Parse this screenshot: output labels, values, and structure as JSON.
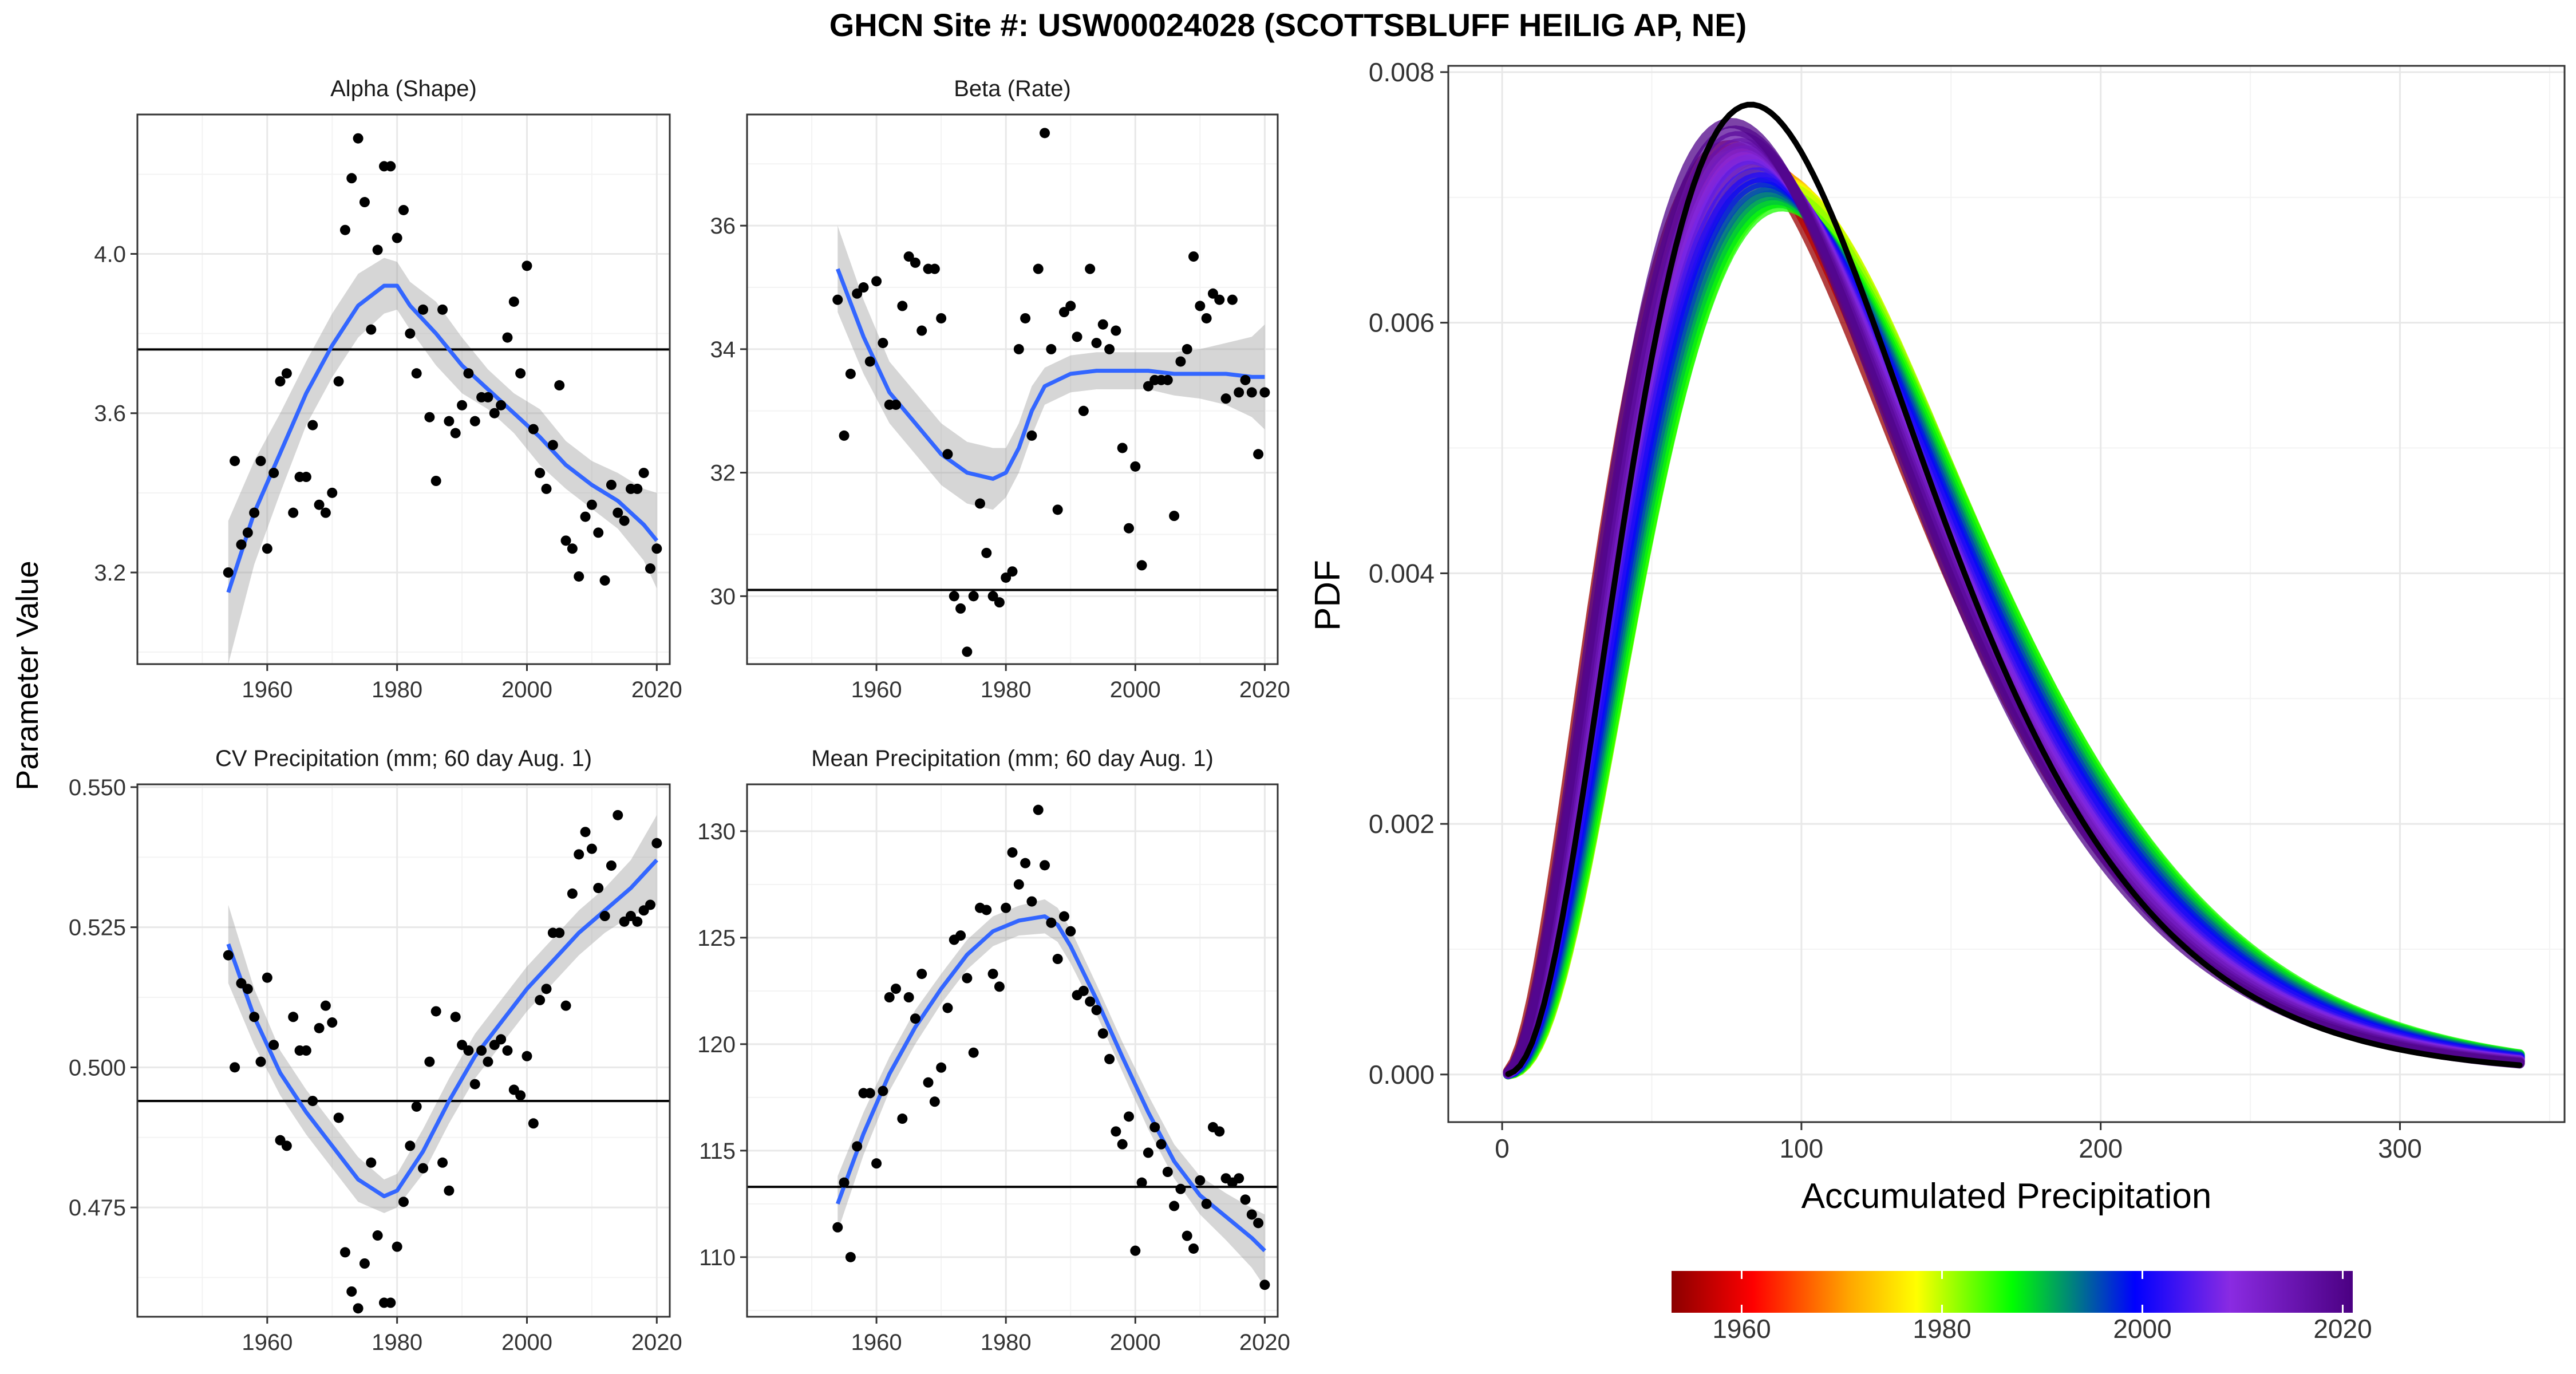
{
  "title": "GHCN Site #: USW00024028 (SCOTTSBLUFF HEILIG AP, NE)",
  "left_ylabel": "Parameter Value",
  "chart_data": [
    {
      "type": "scatter",
      "title": "Alpha (Shape)",
      "xlim": [
        1940,
        2022
      ],
      "ylim": [
        2.97,
        4.35
      ],
      "xticks": [
        1960,
        1980,
        2000,
        2020
      ],
      "yticks": [
        3.2,
        3.6,
        4.0
      ],
      "ytick_labels": [
        "3.2",
        "3.6",
        "4.0"
      ],
      "hline": 3.76,
      "points": {
        "x": [
          1954,
          1955,
          1956,
          1957,
          1958,
          1959,
          1960,
          1961,
          1962,
          1963,
          1964,
          1965,
          1966,
          1967,
          1968,
          1969,
          1970,
          1971,
          1972,
          1973,
          1974,
          1975,
          1976,
          1977,
          1978,
          1979,
          1980,
          1981,
          1982,
          1983,
          1984,
          1985,
          1986,
          1987,
          1988,
          1989,
          1990,
          1991,
          1992,
          1993,
          1994,
          1995,
          1996,
          1997,
          1998,
          1999,
          2000,
          2001,
          2002,
          2003,
          2004,
          2005,
          2006,
          2007,
          2008,
          2009,
          2010,
          2011,
          2012,
          2013,
          2014,
          2015,
          2016,
          2017,
          2018,
          2019,
          2020
        ],
        "y": [
          3.2,
          3.48,
          3.27,
          3.3,
          3.35,
          3.48,
          3.26,
          3.45,
          3.68,
          3.7,
          3.35,
          3.44,
          3.44,
          3.57,
          3.37,
          3.35,
          3.4,
          3.68,
          4.06,
          4.19,
          4.29,
          4.13,
          3.81,
          4.01,
          4.22,
          4.22,
          4.04,
          4.11,
          3.8,
          3.7,
          3.86,
          3.59,
          3.43,
          3.86,
          3.58,
          3.55,
          3.62,
          3.7,
          3.58,
          3.64,
          3.64,
          3.6,
          3.62,
          3.79,
          3.88,
          3.7,
          3.97,
          3.56,
          3.45,
          3.41,
          3.52,
          3.67,
          3.28,
          3.26,
          3.19,
          3.34,
          3.37,
          3.3,
          3.18,
          3.42,
          3.35,
          3.33,
          3.41,
          3.41,
          3.45,
          3.21,
          3.26
        ]
      },
      "smooth": {
        "x": [
          1954,
          1958,
          1962,
          1966,
          1970,
          1974,
          1978,
          1980,
          1982,
          1986,
          1990,
          1994,
          1998,
          2002,
          2006,
          2010,
          2014,
          2018,
          2020
        ],
        "y": [
          3.15,
          3.35,
          3.5,
          3.65,
          3.77,
          3.87,
          3.92,
          3.92,
          3.87,
          3.8,
          3.72,
          3.66,
          3.6,
          3.54,
          3.47,
          3.42,
          3.38,
          3.32,
          3.28
        ],
        "lo": [
          2.97,
          3.22,
          3.4,
          3.57,
          3.69,
          3.79,
          3.85,
          3.86,
          3.81,
          3.72,
          3.65,
          3.61,
          3.55,
          3.47,
          3.41,
          3.36,
          3.31,
          3.23,
          3.16
        ],
        "hi": [
          3.33,
          3.48,
          3.6,
          3.73,
          3.85,
          3.95,
          3.99,
          3.98,
          3.93,
          3.88,
          3.79,
          3.71,
          3.65,
          3.61,
          3.53,
          3.48,
          3.45,
          3.41,
          3.4
        ]
      }
    },
    {
      "type": "scatter",
      "title": "Beta (Rate)",
      "xlim": [
        1940,
        2022
      ],
      "ylim": [
        28.9,
        37.8
      ],
      "xticks": [
        1960,
        1980,
        2000,
        2020
      ],
      "yticks": [
        30,
        32,
        34,
        36
      ],
      "ytick_labels": [
        "30",
        "32",
        "34",
        "36"
      ],
      "hline": 30.1,
      "points": {
        "x": [
          1954,
          1955,
          1956,
          1957,
          1958,
          1959,
          1960,
          1961,
          1962,
          1963,
          1964,
          1965,
          1966,
          1967,
          1968,
          1969,
          1970,
          1971,
          1972,
          1973,
          1974,
          1975,
          1976,
          1977,
          1978,
          1979,
          1980,
          1981,
          1982,
          1983,
          1984,
          1985,
          1986,
          1987,
          1988,
          1989,
          1990,
          1991,
          1992,
          1993,
          1994,
          1995,
          1996,
          1997,
          1998,
          1999,
          2000,
          2001,
          2002,
          2003,
          2004,
          2005,
          2006,
          2007,
          2008,
          2009,
          2010,
          2011,
          2012,
          2013,
          2014,
          2015,
          2016,
          2017,
          2018,
          2019,
          2020
        ],
        "y": [
          34.8,
          32.6,
          33.6,
          34.9,
          35.0,
          33.8,
          35.1,
          34.1,
          33.1,
          33.1,
          34.7,
          35.5,
          35.4,
          34.3,
          35.3,
          35.3,
          34.5,
          32.3,
          30.0,
          29.8,
          29.1,
          30.0,
          31.5,
          30.7,
          30.0,
          29.9,
          30.3,
          30.4,
          34.0,
          34.5,
          32.6,
          35.3,
          37.5,
          34.0,
          31.4,
          34.6,
          34.7,
          34.2,
          33.0,
          35.3,
          34.1,
          34.4,
          34.0,
          34.3,
          32.4,
          31.1,
          32.1,
          30.5,
          33.4,
          33.5,
          33.5,
          33.5,
          31.3,
          33.8,
          34.0,
          35.5,
          34.7,
          34.5,
          34.9,
          34.8,
          33.2,
          34.8,
          33.3,
          33.5,
          33.3,
          32.3,
          33.3
        ]
      },
      "smooth": {
        "x": [
          1954,
          1958,
          1962,
          1966,
          1970,
          1974,
          1978,
          1980,
          1982,
          1984,
          1986,
          1990,
          1994,
          1998,
          2002,
          2006,
          2010,
          2014,
          2018,
          2020
        ],
        "y": [
          35.3,
          34.2,
          33.3,
          32.8,
          32.3,
          32.0,
          31.9,
          32.0,
          32.4,
          33.0,
          33.4,
          33.6,
          33.65,
          33.65,
          33.65,
          33.6,
          33.6,
          33.6,
          33.55,
          33.55
        ],
        "lo": [
          34.6,
          33.6,
          32.8,
          32.3,
          31.8,
          31.5,
          31.4,
          31.6,
          32.0,
          32.6,
          33.1,
          33.3,
          33.35,
          33.35,
          33.35,
          33.25,
          33.2,
          33.1,
          32.9,
          32.7
        ],
        "hi": [
          36.0,
          34.8,
          33.8,
          33.3,
          32.8,
          32.5,
          32.4,
          32.4,
          32.8,
          33.4,
          33.7,
          33.9,
          33.95,
          33.95,
          33.95,
          33.95,
          34.0,
          34.1,
          34.2,
          34.4
        ]
      }
    },
    {
      "type": "scatter",
      "title": "CV Precipitation (mm; 60 day Aug. 1)",
      "xlim": [
        1940,
        2022
      ],
      "ylim": [
        0.4555,
        0.5505
      ],
      "xticks": [
        1960,
        1980,
        2000,
        2020
      ],
      "yticks": [
        0.475,
        0.5,
        0.525,
        0.55
      ],
      "ytick_labels": [
        "0.475",
        "0.500",
        "0.525",
        "0.550"
      ],
      "hline": 0.494,
      "points": {
        "x": [
          1954,
          1955,
          1956,
          1957,
          1958,
          1959,
          1960,
          1961,
          1962,
          1963,
          1964,
          1965,
          1966,
          1967,
          1968,
          1969,
          1970,
          1971,
          1972,
          1973,
          1974,
          1975,
          1976,
          1977,
          1978,
          1979,
          1980,
          1981,
          1982,
          1983,
          1984,
          1985,
          1986,
          1987,
          1988,
          1989,
          1990,
          1991,
          1992,
          1993,
          1994,
          1995,
          1996,
          1997,
          1998,
          1999,
          2000,
          2001,
          2002,
          2003,
          2004,
          2005,
          2006,
          2007,
          2008,
          2009,
          2010,
          2011,
          2012,
          2013,
          2014,
          2015,
          2016,
          2017,
          2018,
          2019,
          2020
        ],
        "y": [
          0.52,
          0.5,
          0.515,
          0.514,
          0.509,
          0.501,
          0.516,
          0.504,
          0.487,
          0.486,
          0.509,
          0.503,
          0.503,
          0.494,
          0.507,
          0.511,
          0.508,
          0.491,
          0.467,
          0.46,
          0.457,
          0.465,
          0.483,
          0.47,
          0.458,
          0.458,
          0.468,
          0.476,
          0.486,
          0.493,
          0.482,
          0.501,
          0.51,
          0.483,
          0.478,
          0.509,
          0.504,
          0.503,
          0.497,
          0.503,
          0.501,
          0.504,
          0.505,
          0.503,
          0.496,
          0.495,
          0.502,
          0.49,
          0.512,
          0.514,
          0.524,
          0.524,
          0.511,
          0.531,
          0.538,
          0.542,
          0.539,
          0.532,
          0.527,
          0.536,
          0.545,
          0.526,
          0.527,
          0.526,
          0.528,
          0.529,
          0.54
        ]
      },
      "smooth": {
        "x": [
          1954,
          1958,
          1962,
          1966,
          1970,
          1974,
          1978,
          1980,
          1984,
          1988,
          1992,
          1996,
          2000,
          2004,
          2008,
          2012,
          2016,
          2020
        ],
        "y": [
          0.522,
          0.509,
          0.499,
          0.492,
          0.486,
          0.48,
          0.477,
          0.478,
          0.485,
          0.494,
          0.502,
          0.508,
          0.514,
          0.519,
          0.524,
          0.528,
          0.532,
          0.537
        ],
        "lo": [
          0.515,
          0.504,
          0.495,
          0.488,
          0.482,
          0.476,
          0.474,
          0.475,
          0.481,
          0.49,
          0.498,
          0.504,
          0.51,
          0.515,
          0.52,
          0.524,
          0.527,
          0.529
        ],
        "hi": [
          0.529,
          0.514,
          0.503,
          0.496,
          0.49,
          0.484,
          0.48,
          0.481,
          0.489,
          0.498,
          0.506,
          0.512,
          0.518,
          0.523,
          0.528,
          0.532,
          0.537,
          0.545
        ]
      }
    },
    {
      "type": "scatter",
      "title": "Mean Precipitation (mm; 60 day Aug. 1)",
      "xlim": [
        1940,
        2022
      ],
      "ylim": [
        107.2,
        132.2
      ],
      "xticks": [
        1960,
        1980,
        2000,
        2020
      ],
      "yticks": [
        110,
        115,
        120,
        125,
        130
      ],
      "ytick_labels": [
        "110",
        "115",
        "120",
        "125",
        "130"
      ],
      "hline": 113.3,
      "points": {
        "x": [
          1954,
          1955,
          1956,
          1957,
          1958,
          1959,
          1960,
          1961,
          1962,
          1963,
          1964,
          1965,
          1966,
          1967,
          1968,
          1969,
          1970,
          1971,
          1972,
          1973,
          1974,
          1975,
          1976,
          1977,
          1978,
          1979,
          1980,
          1981,
          1982,
          1983,
          1984,
          1985,
          1986,
          1987,
          1988,
          1989,
          1990,
          1991,
          1992,
          1993,
          1994,
          1995,
          1996,
          1997,
          1998,
          1999,
          2000,
          2001,
          2002,
          2003,
          2004,
          2005,
          2006,
          2007,
          2008,
          2009,
          2010,
          2011,
          2012,
          2013,
          2014,
          2015,
          2016,
          2017,
          2018,
          2019,
          2020
        ],
        "y": [
          111.4,
          113.5,
          110.0,
          115.2,
          117.7,
          117.7,
          114.4,
          117.8,
          122.2,
          122.6,
          116.5,
          122.2,
          121.2,
          123.3,
          118.2,
          117.3,
          118.9,
          121.7,
          124.9,
          125.1,
          123.1,
          119.6,
          126.4,
          126.3,
          123.3,
          122.7,
          126.4,
          129.0,
          127.5,
          128.5,
          126.7,
          131.0,
          128.4,
          125.7,
          124.0,
          126.0,
          125.3,
          122.3,
          122.5,
          122.0,
          121.6,
          120.5,
          119.3,
          115.9,
          115.3,
          116.6,
          110.3,
          113.5,
          114.9,
          116.1,
          115.3,
          114.0,
          112.4,
          113.2,
          111.0,
          110.4,
          113.6,
          112.5,
          116.1,
          115.9,
          113.7,
          113.5,
          113.7,
          112.7,
          112.0,
          111.6,
          108.7
        ]
      },
      "smooth": {
        "x": [
          1954,
          1958,
          1962,
          1966,
          1970,
          1974,
          1978,
          1982,
          1986,
          1988,
          1990,
          1994,
          1998,
          2002,
          2006,
          2010,
          2014,
          2018,
          2020
        ],
        "y": [
          112.5,
          115.8,
          118.6,
          120.8,
          122.6,
          124.2,
          125.3,
          125.8,
          126.0,
          125.6,
          124.6,
          122.1,
          119.4,
          116.8,
          114.5,
          112.9,
          111.9,
          110.9,
          110.3
        ],
        "lo": [
          111.2,
          114.8,
          117.8,
          120.0,
          121.9,
          123.5,
          124.6,
          125.1,
          125.2,
          124.8,
          123.8,
          121.4,
          118.7,
          116.0,
          113.7,
          112.0,
          110.8,
          109.5,
          108.6
        ],
        "hi": [
          113.8,
          116.8,
          119.4,
          121.6,
          123.3,
          124.9,
          126.0,
          126.5,
          126.8,
          126.4,
          125.4,
          122.8,
          120.1,
          117.6,
          115.3,
          113.8,
          113.0,
          112.3,
          112.0
        ]
      }
    },
    {
      "type": "line",
      "title": "",
      "xlabel": "Accumulated Precipitation",
      "ylabel": "PDF",
      "xlim": [
        -18,
        355
      ],
      "ylim": [
        -0.00038,
        0.00805
      ],
      "xticks": [
        0,
        100,
        200,
        300
      ],
      "xtick_labels": [
        "0",
        "100",
        "200",
        "300"
      ],
      "yticks": [
        0,
        0.002,
        0.004,
        0.006,
        0.008
      ],
      "ytick_labels": [
        "0.000",
        "0.002",
        "0.004",
        "0.006",
        "0.008"
      ],
      "grid": true,
      "curve_description": "Gamma PDFs for each year 1954-2020 (colored by year) and overall fit (black)",
      "series_years": [
        1954,
        1956,
        1958,
        1960,
        1962,
        1964,
        1966,
        1968,
        1970,
        1972,
        1974,
        1976,
        1978,
        1980,
        1982,
        1984,
        1986,
        1988,
        1990,
        1992,
        1994,
        1996,
        1998,
        2000,
        2002,
        2004,
        2006,
        2008,
        2010,
        2012,
        2014,
        2016,
        2018,
        2020
      ],
      "series_alpha": [
        3.15,
        3.25,
        3.35,
        3.43,
        3.5,
        3.57,
        3.65,
        3.71,
        3.77,
        3.82,
        3.87,
        3.9,
        3.92,
        3.92,
        3.89,
        3.84,
        3.8,
        3.76,
        3.72,
        3.69,
        3.66,
        3.63,
        3.6,
        3.57,
        3.54,
        3.5,
        3.47,
        3.45,
        3.42,
        3.4,
        3.38,
        3.35,
        3.32,
        3.28
      ],
      "series_beta": [
        35.3,
        34.7,
        34.2,
        33.7,
        33.3,
        33.0,
        32.8,
        32.5,
        32.3,
        32.1,
        32.0,
        31.9,
        31.9,
        32.0,
        32.4,
        33.0,
        33.4,
        33.5,
        33.6,
        33.6,
        33.65,
        33.65,
        33.65,
        33.65,
        33.65,
        33.6,
        33.6,
        33.6,
        33.6,
        33.6,
        33.6,
        33.55,
        33.55,
        33.55
      ],
      "overall": {
        "alpha": 3.76,
        "beta": 30.1
      },
      "x_max": 340,
      "colorbar": {
        "range": [
          1953,
          2021
        ],
        "ticks": [
          1960,
          1980,
          2000,
          2020
        ],
        "tick_labels": [
          "1960",
          "1980",
          "2000",
          "2020"
        ],
        "colors": [
          "#8B0000",
          "#FF0000",
          "#FFA500",
          "#FFFF00",
          "#00FF00",
          "#0000FF",
          "#8A2BE2",
          "#4B0082"
        ],
        "stops": [
          0,
          0.12,
          0.26,
          0.36,
          0.5,
          0.68,
          0.82,
          1
        ]
      }
    }
  ]
}
